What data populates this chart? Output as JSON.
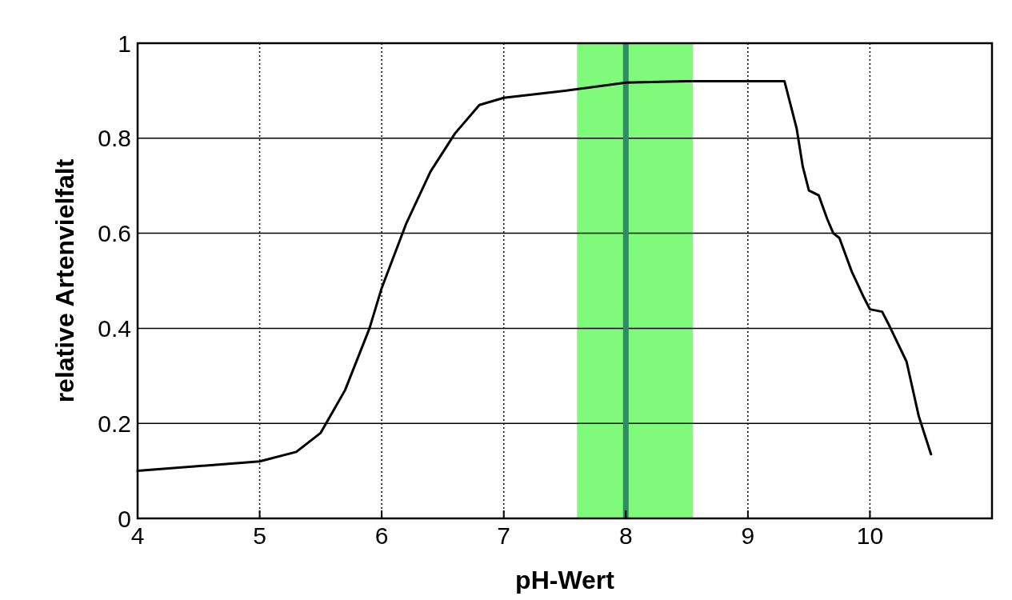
{
  "chart_data": {
    "type": "line",
    "xlabel": "pH-Wert",
    "ylabel": "relative Artenvielfalt",
    "x": [
      4.0,
      5.0,
      5.3,
      5.5,
      5.7,
      5.9,
      6.0,
      6.2,
      6.4,
      6.6,
      6.8,
      7.0,
      7.5,
      8.0,
      8.5,
      9.0,
      9.3,
      9.35,
      9.4,
      9.45,
      9.5,
      9.58,
      9.65,
      9.7,
      9.75,
      9.85,
      9.95,
      10.0,
      10.1,
      10.15,
      10.3,
      10.4,
      10.5
    ],
    "series": [
      {
        "color": "#000000",
        "values": [
          0.1,
          0.12,
          0.14,
          0.18,
          0.27,
          0.4,
          0.485,
          0.62,
          0.73,
          0.81,
          0.87,
          0.885,
          0.9,
          0.917,
          0.92,
          0.92,
          0.92,
          0.87,
          0.82,
          0.74,
          0.69,
          0.68,
          0.63,
          0.6,
          0.59,
          0.52,
          0.465,
          0.44,
          0.435,
          0.41,
          0.33,
          0.215,
          0.135
        ]
      }
    ],
    "xlim": [
      4,
      11
    ],
    "xticks": [
      4,
      5,
      6,
      7,
      8,
      9,
      10
    ],
    "ylim": [
      0,
      1
    ],
    "yticks": [
      0,
      0.2,
      0.4,
      0.6,
      0.8,
      1
    ],
    "grid": true,
    "line_style": "solid",
    "marker": "none",
    "bands": [
      {
        "axis": "x",
        "from": 7.6,
        "to": 8.55,
        "color": "#80fa7a"
      }
    ],
    "ref_lines": [
      {
        "axis": "x",
        "value": 8,
        "color": "#2e8b6a",
        "line_style": "solid"
      }
    ]
  }
}
